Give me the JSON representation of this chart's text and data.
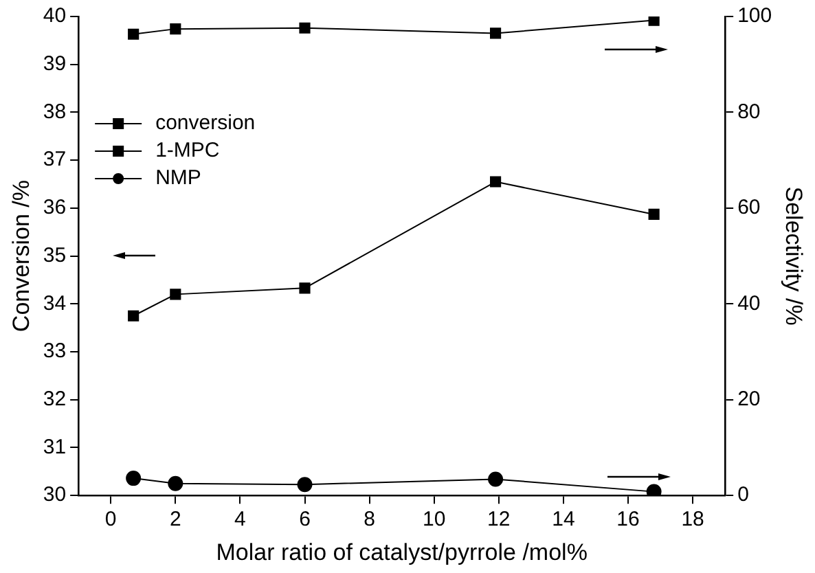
{
  "chart_data": {
    "type": "line",
    "xlabel": "Molar ratio of catalyst/pyrrole /mol%",
    "ylabel": "Conversion /%",
    "y2label": "Selectivity /%",
    "x": [
      0.7,
      2,
      6,
      11.9,
      16.8
    ],
    "series": [
      {
        "name": "conversion",
        "color": "#000000",
        "marker": "square",
        "values": [
          33.75,
          34.2,
          34.33,
          36.55,
          35.87
        ]
      },
      {
        "name": "1-MPC",
        "color": "#000000",
        "marker": "square",
        "axis": "y2",
        "values": [
          96.3,
          97.4,
          97.6,
          96.5,
          99.2
        ]
      },
      {
        "name": "NMP",
        "color": "#000000",
        "marker": "circle",
        "axis": "y2",
        "values": [
          3.6,
          2.5,
          2.3,
          3.4,
          0.8
        ]
      }
    ],
    "xlim": [
      -1,
      19
    ],
    "xticks": [
      0,
      2,
      4,
      6,
      8,
      10,
      12,
      14,
      16,
      18
    ],
    "ylim": [
      30,
      40
    ],
    "yticks": [
      30,
      31,
      32,
      33,
      34,
      35,
      36,
      37,
      38,
      39,
      40
    ],
    "y2lim": [
      0,
      100
    ],
    "y2ticks": [
      0,
      20,
      40,
      60,
      80,
      100
    ],
    "legend": "top left",
    "grid": false
  }
}
